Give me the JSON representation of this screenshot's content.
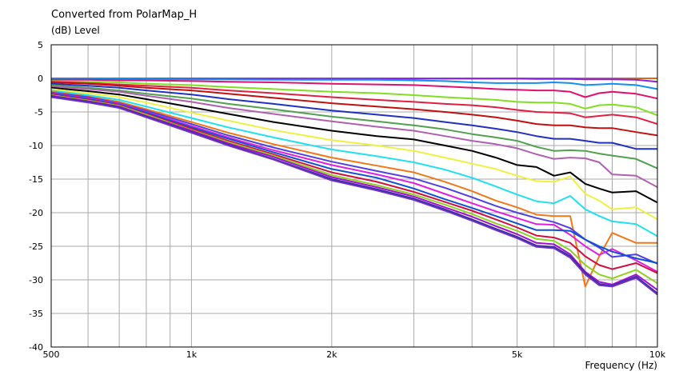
{
  "chart_data": {
    "type": "line",
    "title": "Converted from PolarMap_H",
    "ylabel": "(dB)  Level",
    "xlabel": "Frequency  (Hz)",
    "xscale": "log",
    "xlim": [
      500,
      10000
    ],
    "ylim": [
      -40,
      5
    ],
    "grid": true,
    "x_tick_labels": [
      {
        "value": 500,
        "label": "500"
      },
      {
        "value": 1000,
        "label": "1k"
      },
      {
        "value": 2000,
        "label": "2k"
      },
      {
        "value": 5000,
        "label": "5k"
      },
      {
        "value": 10000,
        "label": "10k"
      }
    ],
    "y_ticks": [
      5,
      0,
      -5,
      -10,
      -15,
      -20,
      -25,
      -30,
      -35,
      -40
    ],
    "x": [
      500,
      600,
      700,
      800,
      1000,
      1200,
      1500,
      2000,
      2500,
      3000,
      3500,
      4000,
      4500,
      5000,
      5500,
      6000,
      6500,
      7000,
      7500,
      8000,
      9000,
      10000
    ],
    "series": [
      {
        "color": "#d07010",
        "values": [
          0,
          0,
          0,
          0,
          0,
          0,
          0,
          0,
          0,
          0,
          0,
          0,
          0,
          0,
          0,
          0,
          0,
          0,
          0,
          0,
          0,
          0
        ]
      },
      {
        "color": "#8a20e0",
        "values": [
          -0.05,
          -0.05,
          -0.05,
          -0.05,
          -0.05,
          -0.05,
          -0.05,
          -0.05,
          -0.05,
          -0.05,
          -0.05,
          -0.05,
          -0.05,
          -0.05,
          -0.1,
          -0.1,
          -0.1,
          -0.15,
          -0.15,
          -0.15,
          -0.2,
          -0.5
        ]
      },
      {
        "color": "#1090f0",
        "values": [
          -0.1,
          -0.1,
          -0.1,
          -0.1,
          -0.15,
          -0.15,
          -0.2,
          -0.2,
          -0.2,
          -0.3,
          -0.4,
          -0.6,
          -0.7,
          -0.7,
          -0.7,
          -0.6,
          -0.7,
          -1.0,
          -0.9,
          -0.8,
          -1.0,
          -1.6
        ]
      },
      {
        "color": "#e01070",
        "values": [
          -0.2,
          -0.2,
          -0.3,
          -0.3,
          -0.4,
          -0.5,
          -0.6,
          -0.8,
          -0.9,
          -1.0,
          -1.2,
          -1.4,
          -1.6,
          -1.7,
          -1.8,
          -1.8,
          -2.0,
          -2.8,
          -2.2,
          -2.0,
          -2.3,
          -3.0
        ]
      },
      {
        "color": "#80e020",
        "values": [
          -0.4,
          -0.5,
          -0.6,
          -0.8,
          -1.0,
          -1.3,
          -1.6,
          -2.0,
          -2.2,
          -2.5,
          -2.8,
          -3.0,
          -3.2,
          -3.5,
          -3.6,
          -3.6,
          -3.8,
          -4.5,
          -4.0,
          -3.9,
          -4.3,
          -5.5
        ]
      },
      {
        "color": "#e02040",
        "values": [
          -0.5,
          -0.7,
          -0.9,
          -1.1,
          -1.4,
          -1.8,
          -2.2,
          -2.8,
          -3.2,
          -3.5,
          -3.8,
          -4.0,
          -4.3,
          -4.7,
          -5.0,
          -5.1,
          -5.2,
          -5.8,
          -5.6,
          -5.4,
          -5.8,
          -6.8
        ]
      },
      {
        "color": "#c01010",
        "values": [
          -0.6,
          -0.8,
          -1.1,
          -1.4,
          -1.8,
          -2.3,
          -2.9,
          -3.7,
          -4.2,
          -4.6,
          -5.0,
          -5.4,
          -5.8,
          -6.3,
          -6.8,
          -7.0,
          -7.0,
          -7.3,
          -7.4,
          -7.4,
          -8.0,
          -8.5
        ]
      },
      {
        "color": "#2030c0",
        "values": [
          -0.8,
          -1.1,
          -1.4,
          -1.8,
          -2.4,
          -3.1,
          -3.8,
          -4.8,
          -5.4,
          -5.9,
          -6.5,
          -7.0,
          -7.5,
          -8.0,
          -8.6,
          -9.0,
          -9.0,
          -9.3,
          -9.6,
          -9.6,
          -10.5,
          -10.5
        ]
      },
      {
        "color": "#50a050",
        "values": [
          -1.0,
          -1.4,
          -1.8,
          -2.3,
          -3.0,
          -3.8,
          -4.6,
          -5.7,
          -6.4,
          -7.0,
          -7.6,
          -8.3,
          -8.8,
          -9.3,
          -10.2,
          -10.8,
          -10.7,
          -10.8,
          -11.2,
          -11.5,
          -12.0,
          -13.4
        ]
      },
      {
        "color": "#b060b0",
        "values": [
          -1.2,
          -1.6,
          -2.0,
          -2.6,
          -3.5,
          -4.4,
          -5.3,
          -6.4,
          -7.2,
          -7.8,
          -8.6,
          -9.3,
          -9.8,
          -10.4,
          -11.3,
          -12.0,
          -11.8,
          -11.9,
          -12.5,
          -14.3,
          -14.5,
          -16.2
        ]
      },
      {
        "color": "#000000",
        "values": [
          -1.4,
          -1.9,
          -2.4,
          -3.1,
          -4.3,
          -5.3,
          -6.5,
          -7.8,
          -8.6,
          -9.1,
          -10.0,
          -10.8,
          -11.8,
          -12.9,
          -13.2,
          -14.5,
          -14.0,
          -15.7,
          -16.4,
          -17.0,
          -16.8,
          -18.5
        ]
      },
      {
        "color": "#f0f040",
        "values": [
          -1.6,
          -2.2,
          -2.8,
          -3.6,
          -5.1,
          -6.3,
          -7.7,
          -9.2,
          -10.0,
          -10.8,
          -11.8,
          -12.7,
          -13.5,
          -14.5,
          -15.3,
          -15.4,
          -14.6,
          -17.2,
          -18.2,
          -19.5,
          -19.2,
          -21.0
        ]
      },
      {
        "color": "#20e0f0",
        "values": [
          -1.8,
          -2.5,
          -3.2,
          -4.2,
          -5.9,
          -7.3,
          -8.8,
          -10.6,
          -11.6,
          -12.5,
          -13.6,
          -14.8,
          -16.1,
          -17.3,
          -18.3,
          -18.6,
          -17.5,
          -19.5,
          -20.5,
          -21.3,
          -21.7,
          -23.5
        ]
      },
      {
        "color": "#f07818",
        "values": [
          -2.0,
          -2.7,
          -3.5,
          -4.6,
          -6.5,
          -8.1,
          -9.8,
          -11.8,
          -13.0,
          -14.0,
          -15.4,
          -16.8,
          -18.2,
          -19.2,
          -20.3,
          -20.5,
          -20.5,
          -31.0,
          -26.5,
          -23.0,
          -24.5,
          -24.5
        ]
      },
      {
        "color": "#5040e0",
        "values": [
          -2.1,
          -2.8,
          -3.7,
          -4.8,
          -6.8,
          -8.5,
          -10.3,
          -12.4,
          -13.8,
          -14.9,
          -16.3,
          -17.7,
          -19.0,
          -20.0,
          -20.8,
          -21.4,
          -22.3,
          -24.0,
          -25.2,
          -26.6,
          -26.2,
          -27.6
        ]
      },
      {
        "color": "#e020e0",
        "values": [
          -2.2,
          -3.0,
          -3.8,
          -5.0,
          -7.1,
          -8.8,
          -10.7,
          -12.9,
          -14.3,
          -15.6,
          -17.2,
          -18.6,
          -19.8,
          -20.8,
          -21.7,
          -21.8,
          -23.3,
          -25.0,
          -26.3,
          -25.4,
          -27.1,
          -28.8
        ]
      },
      {
        "color": "#1050d0",
        "values": [
          -2.3,
          -3.1,
          -3.9,
          -5.1,
          -7.3,
          -9.0,
          -11.0,
          -13.5,
          -14.8,
          -16.4,
          -18.0,
          -19.3,
          -20.5,
          -21.6,
          -22.6,
          -22.6,
          -22.7,
          -24.0,
          -25.0,
          -25.8,
          -26.8,
          -27.5
        ]
      },
      {
        "color": "#d01040",
        "values": [
          -2.4,
          -3.2,
          -4.0,
          -5.3,
          -7.5,
          -9.3,
          -11.3,
          -14.0,
          -15.4,
          -16.9,
          -18.4,
          -19.7,
          -21.0,
          -22.2,
          -23.4,
          -23.7,
          -24.5,
          -26.5,
          -27.8,
          -28.4,
          -27.5,
          -29.0
        ]
      },
      {
        "color": "#90d020",
        "values": [
          -2.5,
          -3.3,
          -4.1,
          -5.4,
          -7.7,
          -9.5,
          -11.5,
          -14.4,
          -15.9,
          -17.3,
          -18.8,
          -20.2,
          -21.6,
          -22.7,
          -23.9,
          -24.2,
          -25.6,
          -27.8,
          -29.2,
          -29.8,
          -28.5,
          -30.5
        ]
      },
      {
        "color": "#a010d0",
        "values": [
          -2.6,
          -3.4,
          -4.2,
          -5.6,
          -7.8,
          -9.7,
          -11.7,
          -14.7,
          -16.2,
          -17.6,
          -19.2,
          -20.6,
          -22.0,
          -23.2,
          -24.5,
          -24.7,
          -26.2,
          -28.8,
          -30.3,
          -30.7,
          -29.2,
          -31.5
        ]
      },
      {
        "color": "#3030a0",
        "values": [
          -2.7,
          -3.5,
          -4.3,
          -5.7,
          -8.0,
          -9.9,
          -12.0,
          -15.0,
          -16.5,
          -17.9,
          -19.5,
          -21.0,
          -22.4,
          -23.6,
          -24.9,
          -25.1,
          -26.5,
          -29.0,
          -30.6,
          -30.9,
          -29.5,
          -32.0
        ]
      },
      {
        "color": "#7030c0",
        "values": [
          -2.8,
          -3.6,
          -4.4,
          -5.8,
          -8.1,
          -10.0,
          -12.1,
          -15.2,
          -16.7,
          -18.1,
          -19.7,
          -21.2,
          -22.6,
          -23.8,
          -25.1,
          -25.3,
          -26.7,
          -29.2,
          -30.8,
          -31.0,
          -29.7,
          -32.2
        ]
      }
    ]
  }
}
